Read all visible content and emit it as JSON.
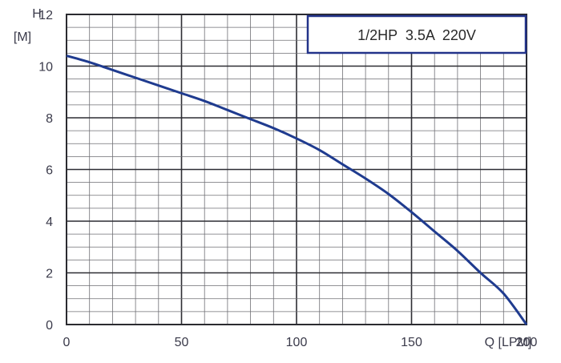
{
  "chart_data": {
    "type": "line",
    "title": "",
    "xlabel": "Q [LPM]",
    "ylabel_line1": "H",
    "ylabel_line2": "[M]",
    "xlim": [
      0,
      200
    ],
    "ylim": [
      0,
      12
    ],
    "x_major_ticks": [
      0,
      50,
      100,
      150,
      200
    ],
    "y_major_ticks": [
      0,
      2,
      4,
      6,
      8,
      10,
      12
    ],
    "grid": true,
    "annotation": "1/2HP  3.5A  220V",
    "series": [
      {
        "color": "#1f3b8f",
        "x": [
          0,
          10,
          20,
          30,
          40,
          50,
          60,
          70,
          80,
          90,
          100,
          110,
          120,
          130,
          140,
          150,
          160,
          170,
          180,
          190,
          200
        ],
        "y": [
          10.4,
          10.15,
          9.85,
          9.55,
          9.25,
          8.95,
          8.65,
          8.3,
          7.95,
          7.6,
          7.2,
          6.75,
          6.2,
          5.65,
          5.05,
          4.35,
          3.6,
          2.85,
          2.0,
          1.2,
          0
        ]
      }
    ]
  }
}
